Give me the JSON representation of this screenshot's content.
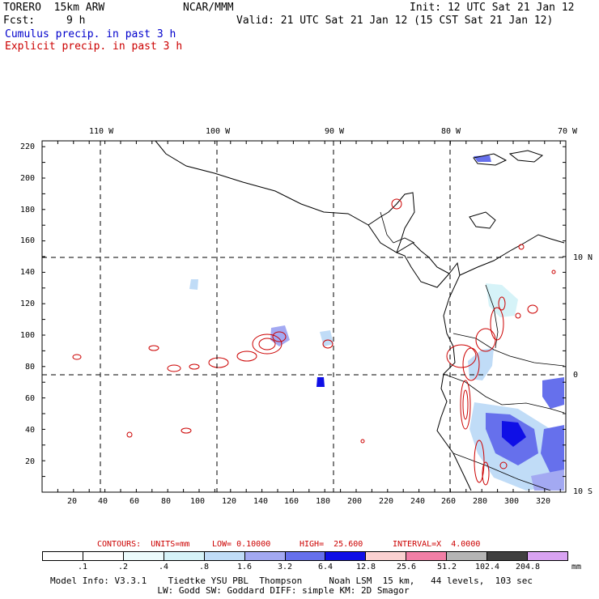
{
  "header": {
    "model": "TORERO  15km ARW",
    "org": "NCAR/MMM",
    "init": "Init: 12 UTC Sat 21 Jan 12",
    "fcst_label": "Fcst:",
    "fcst_value": "9 h",
    "valid": "Valid: 21 UTC Sat 21 Jan 12 (15 CST Sat 21 Jan 12)",
    "legend_cumulus": "Cumulus precip. in past 3 h",
    "legend_explicit": "Explicit precip. in past 3 h"
  },
  "colors": {
    "cumulus": "#0000cc",
    "explicit": "#cc0000",
    "grid": "#000000"
  },
  "axes": {
    "top_ticks": [
      "110 W",
      "100 W",
      "90 W",
      "80 W",
      "70 W"
    ],
    "right_ticks": [
      "10 N",
      "0",
      "10 S"
    ],
    "left_ticks": [
      "220",
      "200",
      "180",
      "160",
      "140",
      "120",
      "100",
      "80",
      "60",
      "40",
      "20"
    ],
    "bottom_ticks": [
      "20",
      "40",
      "60",
      "80",
      "100",
      "120",
      "140",
      "160",
      "180",
      "200",
      "220",
      "240",
      "260",
      "280",
      "300",
      "320"
    ]
  },
  "contour_info": {
    "units": "CONTOURS:  UNITS=mm",
    "low": "LOW= 0.10000",
    "high": "HIGH=  25.600",
    "interval": "INTERVAL=X  4.0000"
  },
  "colorbar": {
    "labels": [
      ".1",
      ".2",
      ".4",
      ".8",
      "1.6",
      "3.2",
      "6.4",
      "12.8",
      "25.6",
      "51.2",
      "102.4",
      "204.8"
    ],
    "unit": "mm",
    "colors": [
      "#ffffff",
      "#ffffff",
      "#ecfbfc",
      "#d6f3f8",
      "#c0dcf7",
      "#a3a9f2",
      "#6670ec",
      "#0f0fe6",
      "#fbd1d1",
      "#f27fa6",
      "#b5b5b5",
      "#404040",
      "#d9a3f2"
    ]
  },
  "footer": {
    "line1": "Model Info: V3.3.1    Tiedtke YSU PBL  Thompson     Noah LSM  15 km,   44 levels,  103 sec",
    "line2": "LW: Godd SW: Goddard DIFF: simple KM: 2D Smagor"
  }
}
